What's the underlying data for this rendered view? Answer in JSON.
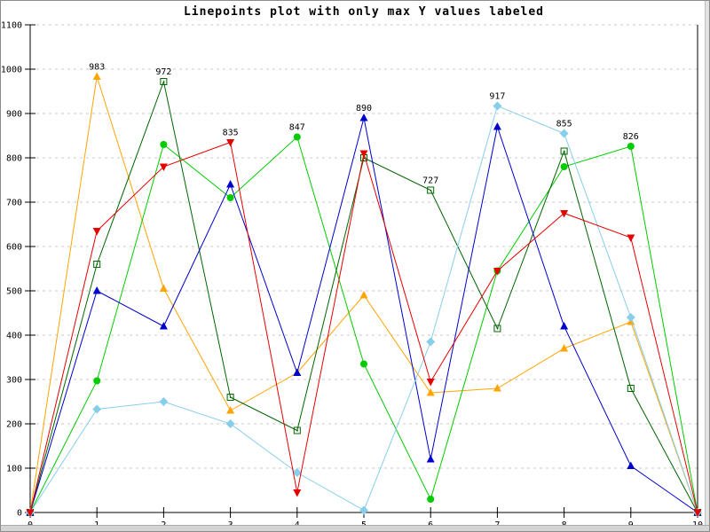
{
  "title": "Linepoints plot with only max Y values labeled",
  "frame": {
    "background": "#ffffff",
    "border_color": "#8c8c8c",
    "grid_color": "#c8c8c8",
    "axis_color": "#000000"
  },
  "chart_data": {
    "type": "line",
    "style": "linespoints",
    "title": "Linepoints plot with only max Y values labeled",
    "xlabel": "",
    "ylabel": "",
    "xlim": [
      0,
      10
    ],
    "ylim": [
      0,
      1100
    ],
    "x_ticks": [
      0,
      1,
      2,
      3,
      4,
      5,
      6,
      7,
      8,
      9,
      10
    ],
    "y_ticks": [
      0,
      100,
      200,
      300,
      400,
      500,
      600,
      700,
      800,
      900,
      1000,
      1100
    ],
    "grid": "horizontal-dashed",
    "legend_position": "none",
    "x": [
      0,
      1,
      2,
      3,
      4,
      5,
      6,
      7,
      8,
      9,
      10
    ],
    "series": [
      {
        "name": "orange-triangle-up",
        "color": "#ffa500",
        "marker": "triangle-up-filled",
        "values": [
          0,
          983,
          505,
          230,
          315,
          490,
          270,
          280,
          370,
          430,
          0
        ]
      },
      {
        "name": "green-circle",
        "color": "#00cc00",
        "marker": "circle-filled",
        "values": [
          0,
          297,
          830,
          710,
          847,
          335,
          30,
          545,
          780,
          826,
          0
        ]
      },
      {
        "name": "darkgreen-square",
        "color": "#006400",
        "marker": "square-open",
        "values": [
          0,
          560,
          972,
          260,
          185,
          800,
          727,
          415,
          815,
          280,
          0
        ]
      },
      {
        "name": "blue-triangle-up",
        "color": "#0000cd",
        "marker": "triangle-up-filled",
        "values": [
          0,
          500,
          420,
          740,
          315,
          890,
          120,
          870,
          420,
          105,
          0
        ]
      },
      {
        "name": "lightblue-diamond",
        "color": "#87ceeb",
        "marker": "diamond-filled",
        "values": [
          0,
          233,
          250,
          200,
          90,
          5,
          385,
          917,
          855,
          440,
          0
        ]
      },
      {
        "name": "red-triangle-down",
        "color": "#e60000",
        "marker": "triangle-down-filled",
        "values": [
          0,
          635,
          780,
          835,
          45,
          810,
          295,
          545,
          675,
          620,
          0
        ]
      }
    ],
    "max_labels": [
      {
        "x": 1,
        "value": "983",
        "series": "orange-triangle-up"
      },
      {
        "x": 2,
        "value": "972",
        "series": "darkgreen-square"
      },
      {
        "x": 3,
        "value": "835",
        "series": "red-triangle-down"
      },
      {
        "x": 4,
        "value": "847",
        "series": "green-circle"
      },
      {
        "x": 5,
        "value": "890",
        "series": "blue-triangle-up"
      },
      {
        "x": 6,
        "value": "727",
        "series": "darkgreen-square"
      },
      {
        "x": 7,
        "value": "917",
        "series": "lightblue-diamond"
      },
      {
        "x": 8,
        "value": "855",
        "series": "lightblue-diamond"
      },
      {
        "x": 9,
        "value": "826",
        "series": "green-circle"
      }
    ]
  }
}
